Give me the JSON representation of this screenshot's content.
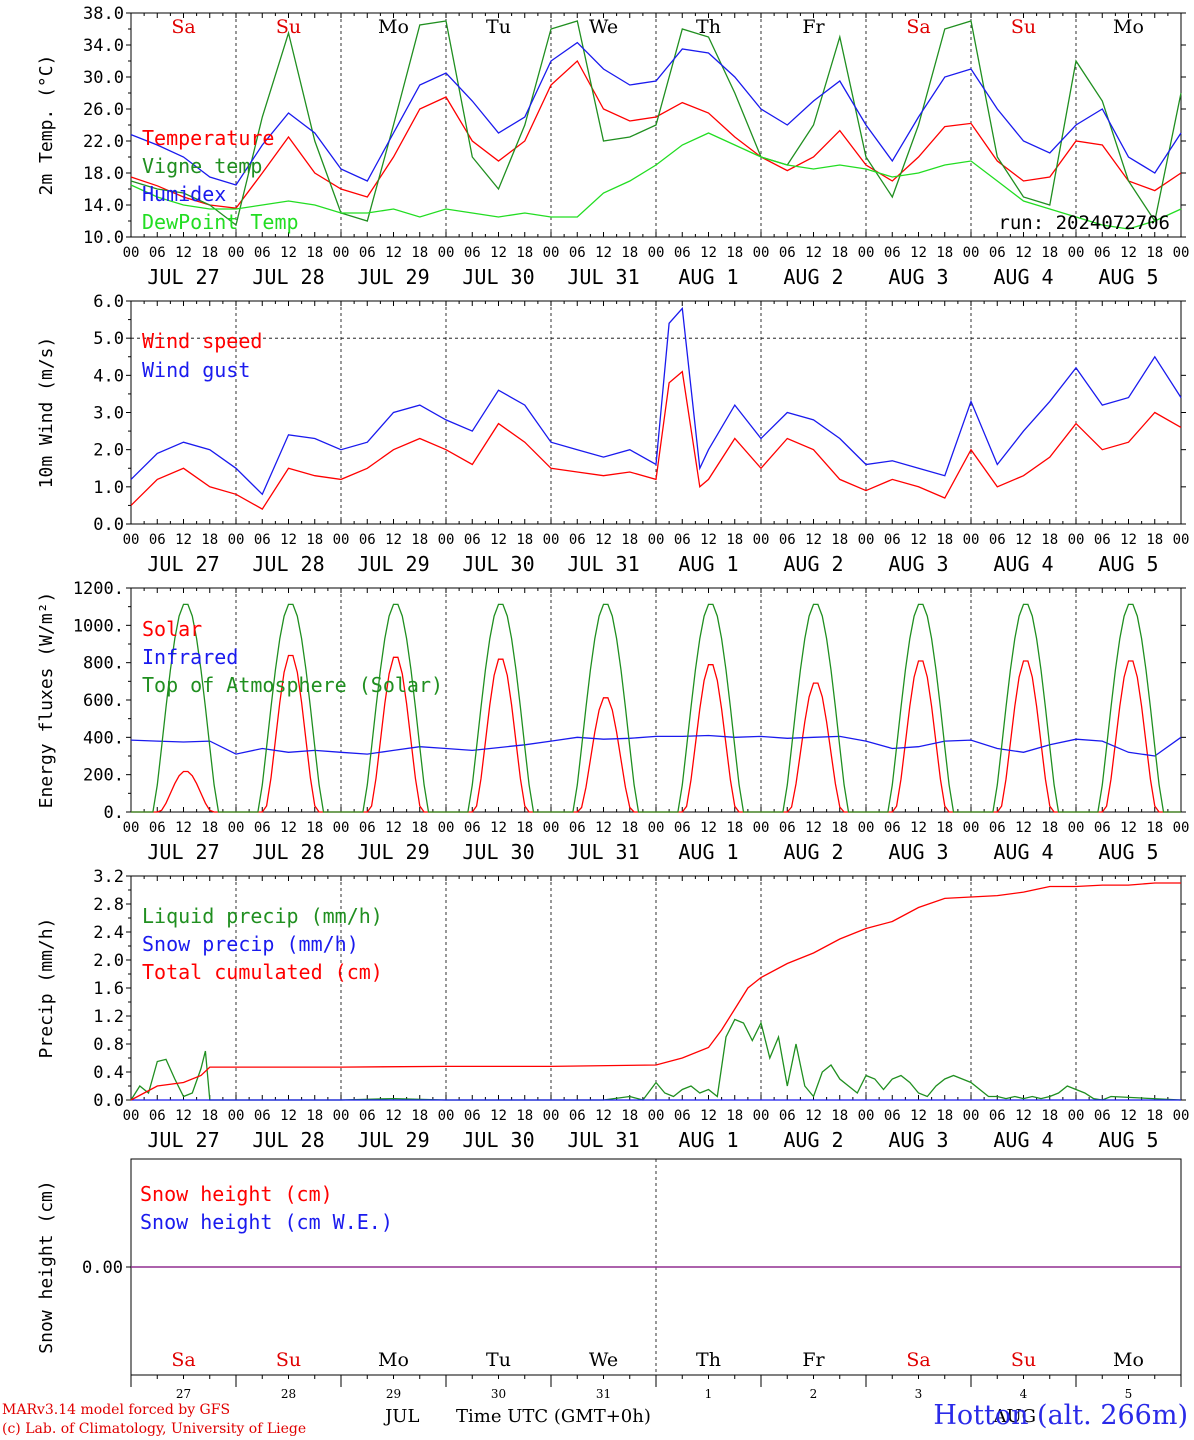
{
  "run_label": "run: 2024072706",
  "credits": {
    "line1": "MARv3.14 model forced by GFS",
    "line2": "(c) Lab. of Climatology, University of Liege"
  },
  "station_label": "Hotton (alt. 266m)",
  "x_title": "Time UTC (GMT+0h)",
  "colors": {
    "red": "#ff0000",
    "green": "#208f20",
    "blue": "#1a1aee",
    "lightgreen": "#22dd22",
    "purple": "#7a2aa0",
    "weekend": "#e00000"
  },
  "hour_ticks": [
    "00",
    "06",
    "12",
    "18"
  ],
  "hour_ticks_end": "00",
  "date_labels": [
    "JUL 27",
    "JUL 28",
    "JUL 29",
    "JUL 30",
    "JUL 31",
    "AUG  1",
    "AUG  2",
    "AUG  3",
    "AUG  4",
    "AUG  5"
  ],
  "weekdays": [
    {
      "label": "Sa",
      "weekend": true
    },
    {
      "label": "Su",
      "weekend": true
    },
    {
      "label": "Mo",
      "weekend": false
    },
    {
      "label": "Tu",
      "weekend": false
    },
    {
      "label": "We",
      "weekend": false
    },
    {
      "label": "Th",
      "weekend": false
    },
    {
      "label": "Fr",
      "weekend": false
    },
    {
      "label": "Sa",
      "weekend": true
    },
    {
      "label": "Su",
      "weekend": true
    },
    {
      "label": "Mo",
      "weekend": false
    }
  ],
  "bottom_day_numbers": [
    "27",
    "28",
    "29",
    "30",
    "31",
    "1",
    "2",
    "3",
    "4",
    "5"
  ],
  "bottom_month_labels": [
    "JUL",
    "AUG"
  ],
  "chart_data": [
    {
      "type": "line",
      "id": "temp",
      "ylabel": "2m Temp. (°C)",
      "ylim": [
        10,
        38
      ],
      "yticks": [
        "10.0",
        "14.0",
        "18.0",
        "22.0",
        "26.0",
        "30.0",
        "34.0",
        "38.0"
      ],
      "series": [
        {
          "name": "Temperature",
          "color": "#ff0000",
          "x": [
            0,
            6,
            12,
            18,
            24,
            30,
            36,
            42,
            48,
            54,
            60,
            66,
            72,
            78,
            84,
            90,
            96,
            102,
            108,
            114,
            120,
            126,
            132,
            138,
            144,
            150,
            156,
            162,
            168,
            174,
            180,
            186,
            192,
            198,
            204,
            210,
            216,
            222,
            228,
            234,
            240
          ],
          "y": [
            17.5,
            16.4,
            15,
            14,
            13.6,
            18,
            22.5,
            18,
            16,
            15,
            20,
            26,
            27.5,
            22,
            19.5,
            22,
            29,
            32,
            26,
            24.5,
            25,
            26.8,
            25.5,
            22.5,
            20,
            18.3,
            20,
            23.3,
            19,
            17,
            20,
            23.8,
            24.2,
            19.5,
            17,
            17.5,
            22,
            21.5,
            17,
            15.8,
            18
          ]
        },
        {
          "name": "Vigne temp",
          "color": "#208f20",
          "x": [
            0,
            6,
            12,
            18,
            24,
            30,
            36,
            42,
            48,
            54,
            60,
            66,
            72,
            78,
            84,
            90,
            96,
            102,
            108,
            114,
            120,
            126,
            132,
            138,
            144,
            150,
            156,
            162,
            168,
            174,
            180,
            186,
            192,
            198,
            204,
            210,
            216,
            222,
            228,
            234,
            240
          ],
          "y": [
            17,
            16,
            15.5,
            14,
            11.5,
            25,
            35.5,
            22,
            13,
            12,
            24,
            36.5,
            37,
            20,
            16,
            24,
            36,
            37,
            22,
            22.5,
            24,
            36,
            35,
            28,
            20,
            19,
            24,
            35,
            20,
            15,
            24,
            36,
            37,
            20,
            15,
            14,
            32,
            27,
            17,
            12,
            28
          ]
        },
        {
          "name": "Humidex",
          "color": "#1a1aee",
          "x": [
            0,
            6,
            12,
            18,
            24,
            30,
            36,
            42,
            48,
            54,
            60,
            66,
            72,
            78,
            84,
            90,
            96,
            102,
            108,
            114,
            120,
            126,
            132,
            138,
            144,
            150,
            156,
            162,
            168,
            174,
            180,
            186,
            192,
            198,
            204,
            210,
            216,
            222,
            228,
            234,
            240
          ],
          "y": [
            22.8,
            21.5,
            20,
            17.5,
            16.5,
            21.5,
            25.5,
            23,
            18.5,
            17,
            23,
            29,
            30.5,
            27,
            23,
            25,
            32,
            34.3,
            31,
            29,
            29.5,
            33.5,
            33,
            30,
            26,
            24,
            27,
            29.5,
            24,
            19.5,
            25,
            30,
            31,
            26,
            22,
            20.5,
            24,
            26,
            20,
            18,
            23
          ]
        },
        {
          "name": "DewPoint Temp",
          "color": "#22dd22",
          "x": [
            0,
            6,
            12,
            18,
            24,
            30,
            36,
            42,
            48,
            54,
            60,
            66,
            72,
            78,
            84,
            90,
            96,
            102,
            108,
            114,
            120,
            126,
            132,
            138,
            144,
            150,
            156,
            162,
            168,
            174,
            180,
            186,
            192,
            198,
            204,
            210,
            216,
            222,
            228,
            234,
            240
          ],
          "y": [
            16.5,
            15,
            14,
            13.5,
            13.5,
            14,
            14.5,
            14,
            13,
            13,
            13.5,
            12.5,
            13.5,
            13,
            12.5,
            13,
            12.5,
            12.5,
            15.5,
            17,
            19,
            21.5,
            23,
            21.5,
            20,
            19,
            18.5,
            19,
            18.5,
            17.5,
            18,
            19,
            19.5,
            17,
            14.5,
            13.5,
            12.5,
            11.5,
            11,
            12,
            13.5
          ]
        }
      ]
    },
    {
      "type": "line",
      "id": "wind",
      "ylabel": "10m Wind (m/s)",
      "ylim": [
        0,
        6
      ],
      "yticks": [
        "0.0",
        "1.0",
        "2.0",
        "3.0",
        "4.0",
        "5.0",
        "6.0"
      ],
      "ref_line": 5,
      "series": [
        {
          "name": "Wind speed",
          "color": "#ff0000",
          "x": [
            0,
            6,
            12,
            18,
            24,
            30,
            36,
            42,
            48,
            54,
            60,
            66,
            72,
            78,
            84,
            90,
            96,
            102,
            108,
            114,
            120,
            123,
            126,
            130,
            132,
            138,
            144,
            150,
            156,
            162,
            168,
            174,
            180,
            186,
            192,
            198,
            204,
            210,
            216,
            222,
            228,
            234,
            240
          ],
          "y": [
            0.5,
            1.2,
            1.5,
            1.0,
            0.8,
            0.4,
            1.5,
            1.3,
            1.2,
            1.5,
            2.0,
            2.3,
            2.0,
            1.6,
            2.7,
            2.2,
            1.5,
            1.4,
            1.3,
            1.4,
            1.2,
            3.8,
            4.1,
            1.0,
            1.2,
            2.3,
            1.5,
            2.3,
            2.0,
            1.2,
            0.9,
            1.2,
            1.0,
            0.7,
            2.0,
            1.0,
            1.3,
            1.8,
            2.7,
            2.0,
            2.2,
            3.0,
            2.6
          ]
        },
        {
          "name": "Wind gust",
          "color": "#1a1aee",
          "x": [
            0,
            6,
            12,
            18,
            24,
            30,
            36,
            42,
            48,
            54,
            60,
            66,
            72,
            78,
            84,
            90,
            96,
            102,
            108,
            114,
            120,
            123,
            126,
            130,
            132,
            138,
            144,
            150,
            156,
            162,
            168,
            174,
            180,
            186,
            192,
            198,
            204,
            210,
            216,
            222,
            228,
            234,
            240
          ],
          "y": [
            1.2,
            1.9,
            2.2,
            2.0,
            1.5,
            0.8,
            2.4,
            2.3,
            2.0,
            2.2,
            3.0,
            3.2,
            2.8,
            2.5,
            3.6,
            3.2,
            2.2,
            2.0,
            1.8,
            2.0,
            1.6,
            5.4,
            5.8,
            1.5,
            2.0,
            3.2,
            2.3,
            3.0,
            2.8,
            2.3,
            1.6,
            1.7,
            1.5,
            1.3,
            3.3,
            1.6,
            2.5,
            3.3,
            4.2,
            3.2,
            3.4,
            4.5,
            3.4
          ]
        }
      ]
    },
    {
      "type": "line",
      "id": "energy",
      "ylabel": "Energy fluxes (W/m²)",
      "ylim": [
        0,
        1200
      ],
      "yticks": [
        "0.",
        "200.",
        "400.",
        "600.",
        "800.",
        "1000.",
        "1200."
      ],
      "series": [
        {
          "name": "Solar",
          "color": "#ff0000",
          "peaks": [
            220,
            850,
            840,
            830,
            620,
            800,
            700,
            820,
            820,
            820
          ]
        },
        {
          "name": "Infrared",
          "color": "#1a1aee",
          "x": [
            0,
            6,
            12,
            18,
            24,
            30,
            36,
            42,
            48,
            54,
            60,
            66,
            72,
            78,
            84,
            90,
            96,
            102,
            108,
            114,
            120,
            126,
            132,
            138,
            144,
            150,
            156,
            162,
            168,
            174,
            180,
            186,
            192,
            198,
            204,
            210,
            216,
            222,
            228,
            234,
            240
          ],
          "y": [
            385,
            380,
            375,
            380,
            310,
            340,
            320,
            330,
            320,
            310,
            330,
            350,
            340,
            330,
            345,
            360,
            380,
            400,
            390,
            395,
            405,
            405,
            410,
            400,
            405,
            395,
            400,
            405,
            380,
            340,
            350,
            380,
            385,
            340,
            320,
            360,
            390,
            380,
            320,
            300,
            400
          ]
        },
        {
          "name": "Top of Atmosphere (Solar)",
          "color": "#208f20",
          "peak": 1120
        }
      ]
    },
    {
      "type": "line",
      "id": "precip",
      "ylabel": "Precip (mm/h)",
      "ylim": [
        0,
        3.2
      ],
      "yticks": [
        "0.0",
        "0.4",
        "0.8",
        "1.2",
        "1.6",
        "2.0",
        "2.4",
        "2.8",
        "3.2"
      ],
      "series": [
        {
          "name": "Liquid precip (mm/h)",
          "color": "#208f20",
          "x": [
            0,
            2,
            4,
            6,
            8,
            10,
            12,
            14,
            16,
            17,
            18,
            24,
            48,
            60,
            72,
            84,
            96,
            108,
            114,
            117,
            120,
            122,
            124,
            126,
            128,
            130,
            132,
            134,
            136,
            138,
            140,
            142,
            144,
            146,
            148,
            150,
            152,
            154,
            156,
            158,
            160,
            162,
            164,
            166,
            168,
            170,
            172,
            174,
            176,
            178,
            180,
            182,
            184,
            186,
            188,
            190,
            192,
            194,
            196,
            198,
            200,
            202,
            204,
            206,
            208,
            210,
            212,
            214,
            216,
            218,
            220,
            222,
            224,
            240
          ],
          "y": [
            0,
            0.2,
            0.1,
            0.55,
            0.58,
            0.3,
            0.05,
            0.1,
            0.45,
            0.7,
            0,
            0,
            0,
            0.02,
            0,
            0,
            0,
            0,
            0.05,
            0,
            0.25,
            0.1,
            0.05,
            0.15,
            0.2,
            0.1,
            0.15,
            0.05,
            0.9,
            1.15,
            1.1,
            0.85,
            1.1,
            0.6,
            0.9,
            0.2,
            0.8,
            0.2,
            0.05,
            0.4,
            0.5,
            0.3,
            0.2,
            0.1,
            0.35,
            0.3,
            0.15,
            0.3,
            0.35,
            0.25,
            0.1,
            0.05,
            0.2,
            0.3,
            0.35,
            0.3,
            0.25,
            0.15,
            0.05,
            0.05,
            0.02,
            0.05,
            0.02,
            0.05,
            0.02,
            0.05,
            0.1,
            0.2,
            0.15,
            0.1,
            0.02,
            0,
            0.05,
            0
          ]
        },
        {
          "name": "Snow precip (mm/h)",
          "color": "#1a1aee",
          "x": [
            0,
            240
          ],
          "y": [
            0,
            0
          ]
        },
        {
          "name": "Total cumulated (cm)",
          "color": "#ff0000",
          "x": [
            0,
            6,
            12,
            16,
            18,
            24,
            48,
            72,
            96,
            120,
            126,
            132,
            135,
            138,
            141,
            144,
            150,
            156,
            162,
            168,
            174,
            180,
            186,
            192,
            198,
            204,
            210,
            216,
            222,
            228,
            234,
            240
          ],
          "y": [
            0,
            0.2,
            0.25,
            0.35,
            0.47,
            0.47,
            0.47,
            0.48,
            0.48,
            0.5,
            0.6,
            0.75,
            1.0,
            1.3,
            1.6,
            1.75,
            1.95,
            2.1,
            2.3,
            2.45,
            2.55,
            2.75,
            2.88,
            2.9,
            2.92,
            2.97,
            3.05,
            3.05,
            3.07,
            3.07,
            3.1,
            3.1
          ]
        }
      ]
    },
    {
      "type": "line",
      "id": "snow",
      "ylabel": "Snow height (cm)",
      "ylim": [
        -1,
        1
      ],
      "yticks": [
        "0.00"
      ],
      "series": [
        {
          "name": "Snow height (cm)",
          "color": "#ff0000",
          "x": [
            0,
            240
          ],
          "y": [
            0,
            0
          ]
        },
        {
          "name": "Snow height (cm W.E.)",
          "color": "#1a1aee",
          "x": [
            0,
            240
          ],
          "y": [
            0,
            0
          ]
        }
      ]
    }
  ]
}
